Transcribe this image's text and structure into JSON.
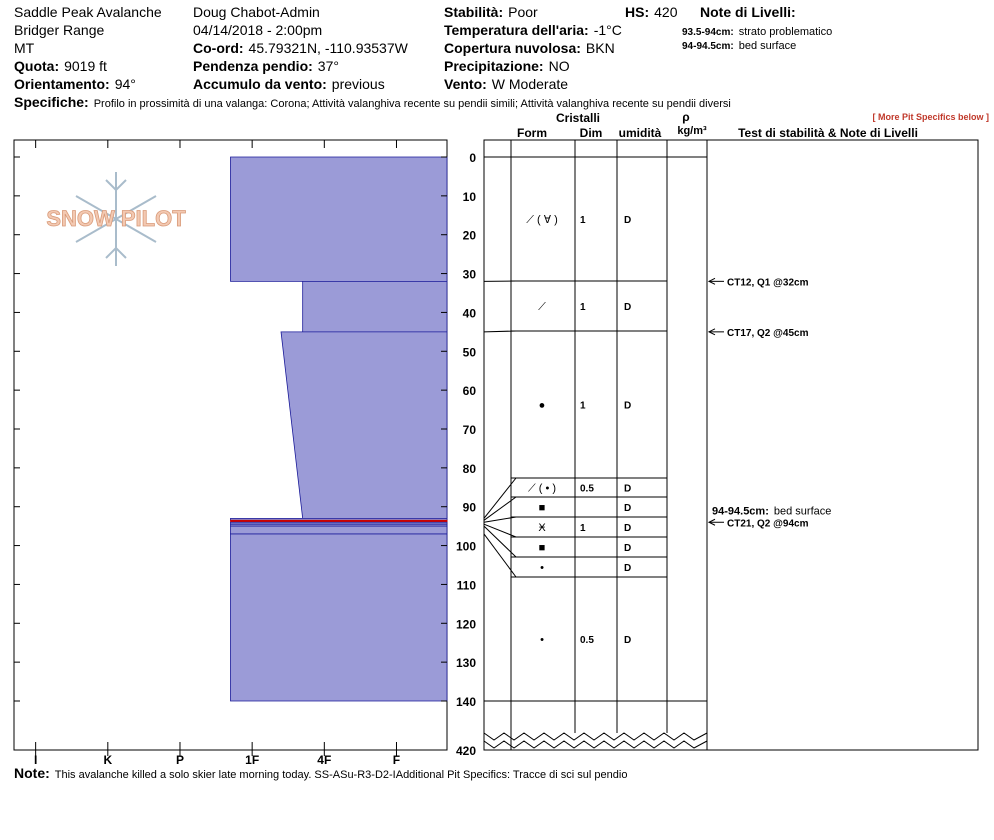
{
  "header": {
    "items": [
      {
        "value": "Saddle Peak Avalanche"
      },
      {
        "value": "Bridger Range"
      },
      {
        "value": "MT"
      },
      {
        "label": "Quota:",
        "value": "9019 ft"
      },
      {
        "label": "Orientamento:",
        "value": "94°"
      },
      {
        "value": "Doug Chabot-Admin"
      },
      {
        "value": "04/14/2018 - 2:00pm"
      },
      {
        "label": "Co-ord:",
        "value": "45.79321N, -110.93537W"
      },
      {
        "label": "Pendenza pendio:",
        "value": "37°"
      },
      {
        "label": "Accumulo da vento:",
        "value": "previous"
      },
      {
        "label": "Stabilità:",
        "value": "Poor"
      },
      {
        "label": "HS:",
        "value": 420
      },
      {
        "label": "Temperatura dell'aria:",
        "value": "-1°C"
      },
      {
        "label": "Copertura nuvolosa:",
        "value": "BKN"
      },
      {
        "label": "Precipitazione:",
        "value": "NO"
      },
      {
        "label": "Vento:",
        "value": "W Moderate"
      },
      {
        "label": "Note di Livelli:"
      }
    ],
    "layer_notes": [
      {
        "range": "93.5-94cm:",
        "text": "strato problematico"
      },
      {
        "range": "94-94.5cm:",
        "text": "bed surface"
      }
    ],
    "specifics": {
      "label": "Specifiche:",
      "text": "Profilo in prossimità di una valanga: Corona;  Attività valanghiva recente su pendii simili;  Attività valanghiva recente su pendii diversi"
    }
  },
  "logo": "SNOW PILOT",
  "chart_data": {
    "type": "snow-profile",
    "ylim": [
      0,
      140
    ],
    "yticks": [
      0,
      10,
      20,
      30,
      40,
      50,
      60,
      70,
      80,
      90,
      100,
      110,
      120,
      130,
      140
    ],
    "hs_axis_label": 420,
    "xlim": [
      6.3,
      0.3
    ],
    "xticks": [
      {
        "value": 6,
        "label": "I"
      },
      {
        "value": 5,
        "label": "K"
      },
      {
        "value": 4,
        "label": "P"
      },
      {
        "value": 3,
        "label": "1F"
      },
      {
        "value": 2,
        "label": "4F"
      },
      {
        "value": 1,
        "label": "F"
      }
    ],
    "layer_color": "#9b9bd7",
    "problem_color": "#cc0000",
    "layers": [
      {
        "top": 0,
        "bottom": 32,
        "hardness_top": 3.3,
        "hardness_bottom": 3.3,
        "form": "⟋ ( ∀ )",
        "size": 1,
        "moisture": "D"
      },
      {
        "top": 32,
        "bottom": 45,
        "hardness_top": 2.3,
        "hardness_bottom": 2.3,
        "form": "⟋",
        "size": 1,
        "moisture": "D"
      },
      {
        "top": 45,
        "bottom": 93,
        "hardness_top": 2.6,
        "hardness_bottom": 2.3,
        "form": "●",
        "size": 1,
        "moisture": "D"
      },
      {
        "top": 93,
        "bottom": 93.5,
        "hardness_top": 3.3,
        "hardness_bottom": 3.3,
        "form": "⟋ ( • )",
        "size": 0.5,
        "moisture": "D"
      },
      {
        "top": 93.5,
        "bottom": 94,
        "hardness_top": 3.3,
        "hardness_bottom": 3.3,
        "form": "■",
        "size": null,
        "moisture": "D",
        "problematic": true
      },
      {
        "top": 94,
        "bottom": 94.5,
        "hardness_top": 3.3,
        "hardness_bottom": 3.3,
        "form": "Ӿ",
        "size": 1,
        "moisture": "D"
      },
      {
        "top": 94.5,
        "bottom": 95,
        "hardness_top": 3.3,
        "hardness_bottom": 3.3,
        "form": "■",
        "size": null,
        "moisture": "D"
      },
      {
        "top": 95,
        "bottom": 97,
        "hardness_top": 3.3,
        "hardness_bottom": 3.3,
        "form": "•",
        "size": null,
        "moisture": "D"
      },
      {
        "top": 97,
        "bottom": 140,
        "hardness_top": 3.3,
        "hardness_bottom": 3.3,
        "form": "•",
        "size": 0.5,
        "moisture": "D"
      }
    ],
    "columns": {
      "group": "Cristalli",
      "form": "Form",
      "size": "Dim",
      "moisture": "umidità",
      "density": "ρ",
      "density_unit": "kg/m³",
      "tests": "Test di stabilità & Note di Livelli",
      "more": "[ More Pit Specifics below ]"
    },
    "tests": [
      {
        "label": "CT12, Q1 @32cm",
        "depth": 32
      },
      {
        "label": "CT17, Q2 @45cm",
        "depth": 45
      },
      {
        "label": "CT21, Q2 @94cm",
        "depth": 94
      }
    ],
    "profile_notes": [
      {
        "range": "94-94.5cm:",
        "text": "bed surface",
        "depth": 94
      }
    ]
  },
  "footer": {
    "label": "Note:",
    "text": "This avalanche killed a solo skier late morning today. SS-ASu-R3-D2-IAdditional Pit Specifics: Tracce di sci sul pendio"
  }
}
